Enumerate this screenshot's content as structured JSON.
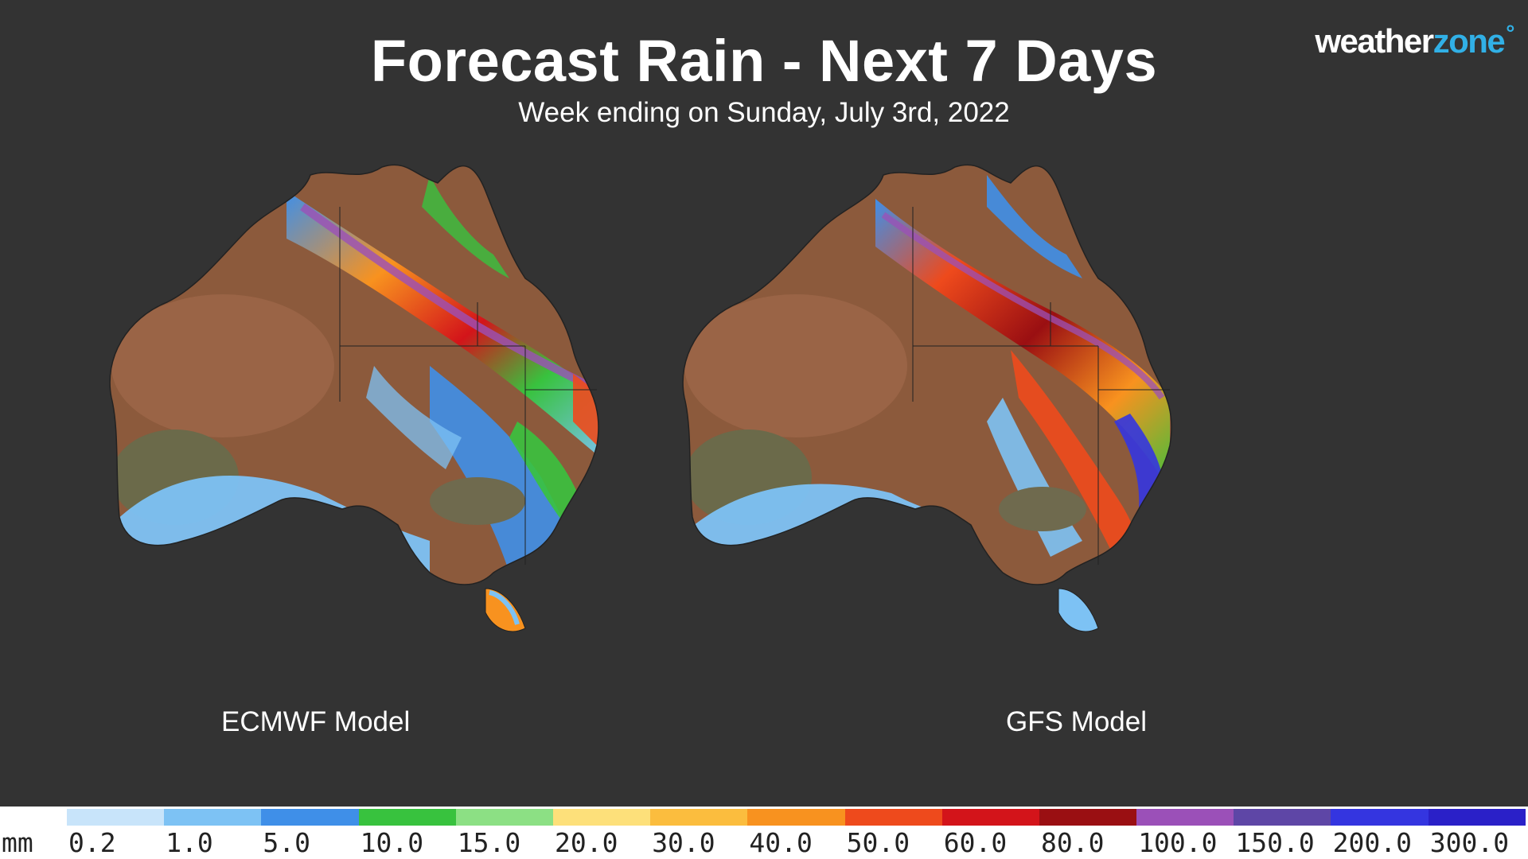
{
  "title": "Forecast Rain - Next 7 Days",
  "subtitle": "Week ending on Sunday, July 3rd, 2022",
  "logo": {
    "part1": "weather",
    "part2": "zone",
    "degree": "°"
  },
  "maps": [
    {
      "label": "ECMWF Model"
    },
    {
      "label": "GFS Model"
    }
  ],
  "legend": {
    "unit": "mm",
    "ticks": [
      "0.2",
      "1.0",
      "5.0",
      "10.0",
      "15.0",
      "20.0",
      "30.0",
      "40.0",
      "50.0",
      "60.0",
      "80.0",
      "100.0",
      "150.0",
      "200.0",
      "300.0"
    ],
    "colors": [
      "#c8e4fa",
      "#7dc2f4",
      "#3f8fe8",
      "#38c23e",
      "#8ce084",
      "#fde07a",
      "#fbbd3e",
      "#f8921f",
      "#ee4a1c",
      "#d3141a",
      "#9a0f12",
      "#9b50b8",
      "#5e46a6",
      "#3435e0",
      "#2a20c8"
    ]
  }
}
